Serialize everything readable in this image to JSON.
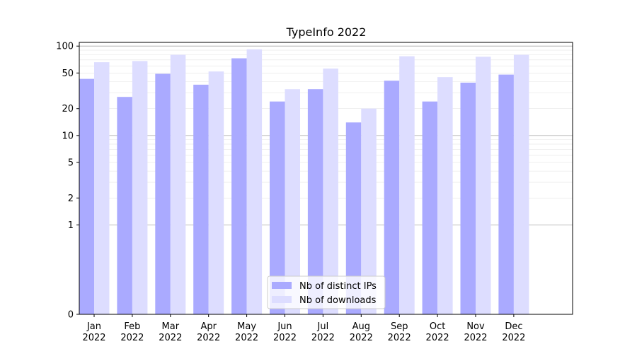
{
  "chart_data": {
    "type": "bar",
    "title": "TypeInfo 2022",
    "xlabel": "",
    "ylabel": "",
    "yscale": "symlog",
    "ylim": [
      0,
      110
    ],
    "yticks": [
      0,
      1,
      2,
      5,
      10,
      20,
      50,
      100
    ],
    "categories": [
      {
        "month": "Jan",
        "year": "2022"
      },
      {
        "month": "Feb",
        "year": "2022"
      },
      {
        "month": "Mar",
        "year": "2022"
      },
      {
        "month": "Apr",
        "year": "2022"
      },
      {
        "month": "May",
        "year": "2022"
      },
      {
        "month": "Jun",
        "year": "2022"
      },
      {
        "month": "Jul",
        "year": "2022"
      },
      {
        "month": "Aug",
        "year": "2022"
      },
      {
        "month": "Sep",
        "year": "2022"
      },
      {
        "month": "Oct",
        "year": "2022"
      },
      {
        "month": "Nov",
        "year": "2022"
      },
      {
        "month": "Dec",
        "year": "2022"
      }
    ],
    "series": [
      {
        "name": "Nb of distinct IPs",
        "color": "#aaaaff",
        "values": [
          43,
          27,
          49,
          37,
          73,
          24,
          33,
          14,
          41,
          24,
          39,
          48
        ]
      },
      {
        "name": "Nb of downloads",
        "color": "#ddddff",
        "values": [
          66,
          68,
          80,
          52,
          92,
          33,
          56,
          20,
          77,
          45,
          76,
          80
        ]
      }
    ],
    "grid": true,
    "legend": "bottom-center"
  }
}
